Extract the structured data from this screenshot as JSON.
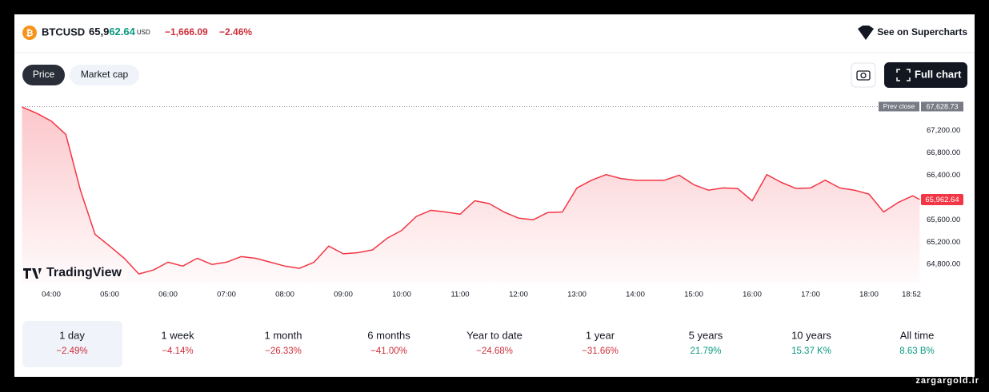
{
  "header": {
    "symbol": "BTCUSD",
    "price_main": "65,9",
    "price_highlight": "62.64",
    "currency": "USD",
    "change": "−1,666.09",
    "change_percent": "−2.46%",
    "link": "See on Supercharts"
  },
  "tabs": [
    "Price",
    "Market cap"
  ],
  "full_chart": "Full chart",
  "chart_data": {
    "type": "area",
    "color": "#f23645",
    "watermark": "TradingView",
    "x": [
      "03:30",
      "03:45",
      "04:00",
      "04:15",
      "04:30",
      "04:45",
      "05:00",
      "05:15",
      "05:30",
      "05:45",
      "06:00",
      "06:15",
      "06:30",
      "06:45",
      "07:00",
      "07:15",
      "07:30",
      "07:45",
      "08:00",
      "08:15",
      "08:30",
      "08:45",
      "09:00",
      "09:15",
      "09:30",
      "09:45",
      "10:00",
      "10:15",
      "10:30",
      "10:45",
      "11:00",
      "11:15",
      "11:30",
      "11:45",
      "12:00",
      "12:15",
      "12:30",
      "12:45",
      "13:00",
      "13:15",
      "13:30",
      "13:45",
      "14:00",
      "14:15",
      "14:30",
      "14:45",
      "15:00",
      "15:15",
      "15:30",
      "15:45",
      "16:00",
      "16:15",
      "16:30",
      "16:45",
      "17:00",
      "17:15",
      "17:30",
      "17:45",
      "18:00",
      "18:15",
      "18:30",
      "18:45",
      "18:52"
    ],
    "values": [
      67620,
      67510,
      67370,
      67130,
      66130,
      65340,
      65130,
      64910,
      64630,
      64700,
      64840,
      64770,
      64910,
      64800,
      64840,
      64940,
      64910,
      64840,
      64770,
      64730,
      64840,
      65130,
      64990,
      65010,
      65060,
      65270,
      65410,
      65660,
      65770,
      65740,
      65700,
      65940,
      65890,
      65740,
      65630,
      65600,
      65730,
      65740,
      66170,
      66310,
      66410,
      66340,
      66310,
      66310,
      66310,
      66400,
      66230,
      66130,
      66170,
      66160,
      65940,
      66410,
      66270,
      66160,
      66170,
      66310,
      66170,
      66130,
      66060,
      65740,
      65910,
      66030,
      65962.64
    ],
    "last_value_label": "65,962.64",
    "prev_close": {
      "label": "Prev close",
      "value": 67628.73,
      "value_label": "67,628.73"
    },
    "ylim": [
      64560,
      67850
    ],
    "yticks": [
      {
        "value": 64800,
        "label": "64,800.00"
      },
      {
        "value": 65200,
        "label": "65,200.00"
      },
      {
        "value": 65600,
        "label": "65,600.00"
      },
      {
        "value": 66400,
        "label": "66,400.00"
      },
      {
        "value": 66800,
        "label": "66,800.00"
      },
      {
        "value": 67200,
        "label": "67,200.00"
      }
    ],
    "xticks": [
      "04:00",
      "05:00",
      "06:00",
      "07:00",
      "08:00",
      "09:00",
      "10:00",
      "11:00",
      "12:00",
      "13:00",
      "14:00",
      "15:00",
      "16:00",
      "17:00",
      "18:00",
      "18:52"
    ]
  },
  "periods": [
    {
      "label": "1 day",
      "change": "−2.49%"
    },
    {
      "label": "1 week",
      "change": "−4.14%"
    },
    {
      "label": "1 month",
      "change": "−26.33%"
    },
    {
      "label": "6 months",
      "change": "−41.00%"
    },
    {
      "label": "Year to date",
      "change": "−24.68%"
    },
    {
      "label": "1 year",
      "change": "−31.66%"
    },
    {
      "label": "5 years",
      "change": "21.79%"
    },
    {
      "label": "10 years",
      "change": "15.37 K%"
    },
    {
      "label": "All time",
      "change": "8.63 B%"
    }
  ],
  "watermark": "zargargold.ir"
}
